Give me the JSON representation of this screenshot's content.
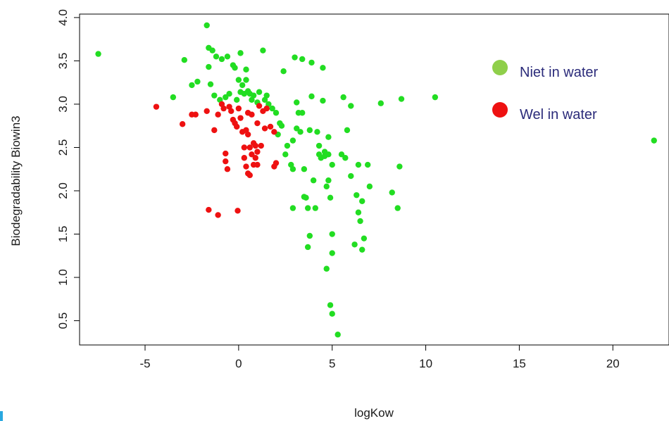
{
  "chart_data": {
    "type": "scatter",
    "title": "",
    "xlabel": "logKow",
    "ylabel": "Biodegradability Biowin3",
    "xlim": [
      -8.5,
      23
    ],
    "ylim": [
      0.22,
      4.04
    ],
    "xticks": [
      -5,
      0,
      5,
      10,
      15,
      20
    ],
    "yticks": [
      0.5,
      1.0,
      1.5,
      2.0,
      2.5,
      3.0,
      3.5,
      4.0
    ],
    "ytick_labels": [
      "0.5",
      "1.0",
      "1.5",
      "2.0",
      "2.5",
      "3.0",
      "3.5",
      "4.0"
    ],
    "grid": false,
    "legend_position": "top-right",
    "series": [
      {
        "name": "Niet in water",
        "color": "#22dd22",
        "legend_color": "#8fcf4a",
        "points": [
          [
            -7.5,
            3.58
          ],
          [
            -3.5,
            3.08
          ],
          [
            -2.9,
            3.51
          ],
          [
            -2.5,
            3.22
          ],
          [
            -2.2,
            3.26
          ],
          [
            -1.7,
            3.91
          ],
          [
            -1.6,
            3.65
          ],
          [
            -1.6,
            3.43
          ],
          [
            -1.4,
            3.62
          ],
          [
            -1.2,
            3.55
          ],
          [
            -1.5,
            3.23
          ],
          [
            -1.3,
            3.1
          ],
          [
            -1.0,
            3.05
          ],
          [
            -0.7,
            3.08
          ],
          [
            -0.9,
            3.52
          ],
          [
            -0.6,
            3.55
          ],
          [
            -0.5,
            3.12
          ],
          [
            -0.3,
            3.45
          ],
          [
            -0.2,
            3.42
          ],
          [
            -0.1,
            3.05
          ],
          [
            0.0,
            3.28
          ],
          [
            0.1,
            3.14
          ],
          [
            0.1,
            3.59
          ],
          [
            0.2,
            3.22
          ],
          [
            0.3,
            3.12
          ],
          [
            0.4,
            3.4
          ],
          [
            0.4,
            3.28
          ],
          [
            0.5,
            3.15
          ],
          [
            0.6,
            3.12
          ],
          [
            0.7,
            3.05
          ],
          [
            0.8,
            3.1
          ],
          [
            1.0,
            3.02
          ],
          [
            1.1,
            3.14
          ],
          [
            1.3,
            3.62
          ],
          [
            1.4,
            3.05
          ],
          [
            1.5,
            3.1
          ],
          [
            1.6,
            3.0
          ],
          [
            1.8,
            2.95
          ],
          [
            2.0,
            2.9
          ],
          [
            2.1,
            2.65
          ],
          [
            2.2,
            2.78
          ],
          [
            2.3,
            2.75
          ],
          [
            2.4,
            3.38
          ],
          [
            2.5,
            2.42
          ],
          [
            2.6,
            2.52
          ],
          [
            2.8,
            2.3
          ],
          [
            2.9,
            2.25
          ],
          [
            2.9,
            2.58
          ],
          [
            2.9,
            1.8
          ],
          [
            3.0,
            3.54
          ],
          [
            3.1,
            3.02
          ],
          [
            3.1,
            2.72
          ],
          [
            3.2,
            2.9
          ],
          [
            3.3,
            2.68
          ],
          [
            3.4,
            3.52
          ],
          [
            3.4,
            2.9
          ],
          [
            3.5,
            2.25
          ],
          [
            3.5,
            1.93
          ],
          [
            3.6,
            1.92
          ],
          [
            3.7,
            1.8
          ],
          [
            3.8,
            2.7
          ],
          [
            3.8,
            1.48
          ],
          [
            3.7,
            1.35
          ],
          [
            3.9,
            3.48
          ],
          [
            3.9,
            3.09
          ],
          [
            4.0,
            2.12
          ],
          [
            4.1,
            1.8
          ],
          [
            4.2,
            2.68
          ],
          [
            4.3,
            2.52
          ],
          [
            4.3,
            2.42
          ],
          [
            4.4,
            2.38
          ],
          [
            4.5,
            3.42
          ],
          [
            4.5,
            3.04
          ],
          [
            4.6,
            2.45
          ],
          [
            4.6,
            2.4
          ],
          [
            4.7,
            2.05
          ],
          [
            4.7,
            1.1
          ],
          [
            4.8,
            2.62
          ],
          [
            4.8,
            2.42
          ],
          [
            4.8,
            2.12
          ],
          [
            4.9,
            1.92
          ],
          [
            4.9,
            0.68
          ],
          [
            5.0,
            2.3
          ],
          [
            5.0,
            1.5
          ],
          [
            5.0,
            1.28
          ],
          [
            5.0,
            0.58
          ],
          [
            5.3,
            0.34
          ],
          [
            5.5,
            2.42
          ],
          [
            5.6,
            3.08
          ],
          [
            5.7,
            2.38
          ],
          [
            5.8,
            2.7
          ],
          [
            6.0,
            2.98
          ],
          [
            6.0,
            2.17
          ],
          [
            6.2,
            1.38
          ],
          [
            6.3,
            1.95
          ],
          [
            6.4,
            2.3
          ],
          [
            6.4,
            1.75
          ],
          [
            6.5,
            1.65
          ],
          [
            6.6,
            1.88
          ],
          [
            6.6,
            1.32
          ],
          [
            6.7,
            1.45
          ],
          [
            6.9,
            2.3
          ],
          [
            7.0,
            2.05
          ],
          [
            7.6,
            3.01
          ],
          [
            8.2,
            1.98
          ],
          [
            8.5,
            1.8
          ],
          [
            8.6,
            2.28
          ],
          [
            8.7,
            3.06
          ],
          [
            10.5,
            3.08
          ],
          [
            22.2,
            2.58
          ]
        ]
      },
      {
        "name": "Wel in water",
        "color": "#ee1111",
        "legend_color": "#ee1111",
        "points": [
          [
            -4.4,
            2.97
          ],
          [
            -3.0,
            2.77
          ],
          [
            -2.5,
            2.88
          ],
          [
            -2.3,
            2.88
          ],
          [
            -1.7,
            2.92
          ],
          [
            -1.6,
            1.78
          ],
          [
            -1.3,
            2.7
          ],
          [
            -1.1,
            1.72
          ],
          [
            -1.1,
            2.88
          ],
          [
            -0.9,
            3.0
          ],
          [
            -0.8,
            2.95
          ],
          [
            -0.7,
            2.34
          ],
          [
            -0.7,
            2.43
          ],
          [
            -0.6,
            2.25
          ],
          [
            -0.5,
            2.97
          ],
          [
            -0.4,
            2.92
          ],
          [
            -0.3,
            2.82
          ],
          [
            -0.2,
            2.78
          ],
          [
            -0.1,
            2.74
          ],
          [
            -0.05,
            1.77
          ],
          [
            0.0,
            2.95
          ],
          [
            0.1,
            2.84
          ],
          [
            0.2,
            2.68
          ],
          [
            0.3,
            2.5
          ],
          [
            0.3,
            2.38
          ],
          [
            0.4,
            2.7
          ],
          [
            0.4,
            2.28
          ],
          [
            0.5,
            2.9
          ],
          [
            0.5,
            2.65
          ],
          [
            0.5,
            2.2
          ],
          [
            0.6,
            2.5
          ],
          [
            0.6,
            2.18
          ],
          [
            0.7,
            2.88
          ],
          [
            0.7,
            2.42
          ],
          [
            0.8,
            2.55
          ],
          [
            0.8,
            2.3
          ],
          [
            0.9,
            2.52
          ],
          [
            0.9,
            2.38
          ],
          [
            1.0,
            2.45
          ],
          [
            1.0,
            2.3
          ],
          [
            1.0,
            2.78
          ],
          [
            1.1,
            2.98
          ],
          [
            1.2,
            2.52
          ],
          [
            1.3,
            2.92
          ],
          [
            1.4,
            2.72
          ],
          [
            1.5,
            2.95
          ],
          [
            1.7,
            2.74
          ],
          [
            1.9,
            2.28
          ],
          [
            1.9,
            2.68
          ],
          [
            2.0,
            2.32
          ]
        ]
      }
    ]
  }
}
